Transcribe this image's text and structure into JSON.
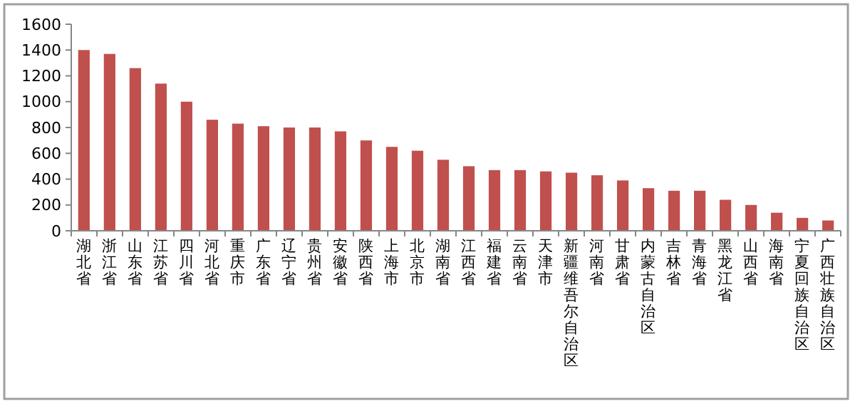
{
  "chart_data": {
    "type": "bar",
    "categories": [
      "湖北省",
      "浙江省",
      "山东省",
      "江苏省",
      "四川省",
      "河北省",
      "重庆市",
      "广东省",
      "辽宁省",
      "贵州省",
      "安徽省",
      "陕西省",
      "上海市",
      "北京市",
      "湖南省",
      "江西省",
      "福建省",
      "云南省",
      "天津市",
      "新疆维吾尔自治区",
      "河南省",
      "甘肃省",
      "内蒙古自治区",
      "吉林省",
      "青海省",
      "黑龙江省",
      "山西省",
      "海南省",
      "宁夏回族自治区",
      "广西壮族自治区"
    ],
    "values": [
      1400,
      1370,
      1260,
      1140,
      1000,
      860,
      830,
      810,
      800,
      800,
      770,
      700,
      650,
      620,
      550,
      500,
      470,
      470,
      460,
      450,
      430,
      390,
      330,
      310,
      310,
      240,
      200,
      140,
      100,
      80
    ],
    "color": "#c0504d",
    "ylim": [
      0,
      1600
    ],
    "yticks": [
      0,
      200,
      400,
      600,
      800,
      1000,
      1200,
      1400,
      1600
    ]
  }
}
